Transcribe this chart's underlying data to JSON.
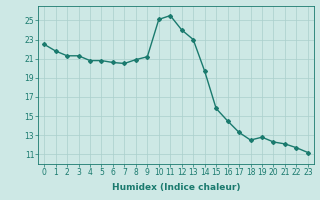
{
  "x": [
    0,
    1,
    2,
    3,
    4,
    5,
    6,
    7,
    8,
    9,
    10,
    11,
    12,
    13,
    14,
    15,
    16,
    17,
    18,
    19,
    20,
    21,
    22,
    23
  ],
  "y": [
    22.5,
    21.8,
    21.3,
    21.3,
    20.8,
    20.8,
    20.6,
    20.5,
    20.9,
    21.2,
    25.1,
    25.5,
    24.0,
    23.0,
    19.7,
    15.8,
    14.5,
    13.3,
    12.5,
    12.8,
    12.3,
    12.1,
    11.7,
    11.2
  ],
  "line_color": "#1a7a6e",
  "marker": "D",
  "marker_size": 2.0,
  "bg_color": "#cde8e5",
  "grid_color": "#aacfcc",
  "xlabel": "Humidex (Indice chaleur)",
  "xlim": [
    -0.5,
    23.5
  ],
  "ylim": [
    10,
    26.5
  ],
  "yticks": [
    11,
    13,
    15,
    17,
    19,
    21,
    23,
    25
  ],
  "xticks": [
    0,
    1,
    2,
    3,
    4,
    5,
    6,
    7,
    8,
    9,
    10,
    11,
    12,
    13,
    14,
    15,
    16,
    17,
    18,
    19,
    20,
    21,
    22,
    23
  ],
  "tick_fontsize": 5.5,
  "xlabel_fontsize": 6.5,
  "line_width": 1.0
}
